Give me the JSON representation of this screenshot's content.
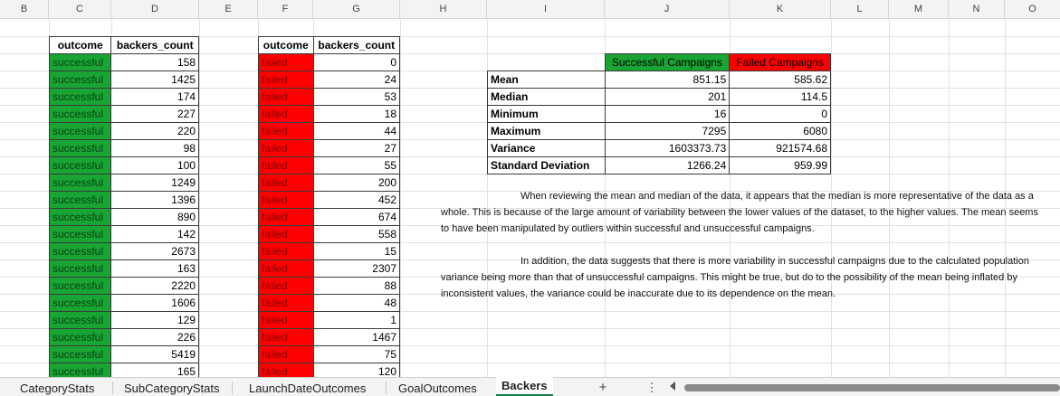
{
  "columns": [
    "B",
    "C",
    "D",
    "E",
    "F",
    "G",
    "H",
    "I",
    "J",
    "K",
    "L",
    "M",
    "N",
    "O"
  ],
  "success_table": {
    "headers": [
      "outcome",
      "backers_count"
    ],
    "outcome_label": "successful",
    "values": [
      "158",
      "1425",
      "174",
      "227",
      "220",
      "98",
      "100",
      "1249",
      "1396",
      "890",
      "142",
      "2673",
      "163",
      "2220",
      "1606",
      "129",
      "226",
      "5419",
      "165"
    ]
  },
  "failed_table": {
    "headers": [
      "outcome",
      "backers_count"
    ],
    "outcome_label": "failed",
    "values": [
      "0",
      "24",
      "53",
      "18",
      "44",
      "27",
      "55",
      "200",
      "452",
      "674",
      "558",
      "15",
      "2307",
      "88",
      "48",
      "1",
      "1467",
      "75",
      "120"
    ]
  },
  "stats": {
    "header_success": "Successful Campaigns",
    "header_failed": "Failed Campaigns",
    "rows": [
      {
        "label": "Mean",
        "success": "851.15",
        "failed": "585.62"
      },
      {
        "label": "Median",
        "success": "201",
        "failed": "114.5"
      },
      {
        "label": "Minimum",
        "success": "16",
        "failed": "0"
      },
      {
        "label": "Maximum",
        "success": "7295",
        "failed": "6080"
      },
      {
        "label": "Variance",
        "success": "1603373.73",
        "failed": "921574.68"
      },
      {
        "label": "Standard Deviation",
        "success": "1266.24",
        "failed": "959.99"
      }
    ]
  },
  "notes": [
    "When reviewing the mean and median of the data, it appears that the median is more representative of the data as a whole. This is because of the large amount of variability between the lower values of the dataset, to the higher values. The mean seems to have been manipulated by outliers within successful and unsuccessful campaigns.",
    "In addition, the data suggests that there is more variability in successful campaigns due to the calculated population variance being more than that of unsuccessful campaigns. This might be true, but do to the possibility of the mean being inflated by inconsistent values, the variance could be inaccurate due to its dependence on the mean."
  ],
  "sheet_tabs": [
    "CategoryStats",
    "SubCategoryStats",
    "LaunchDateOutcomes",
    "GoalOutcomes",
    "Backers"
  ],
  "active_tab": "Backers",
  "add_sheet_symbol": "+",
  "more_symbol": "⋮",
  "colors": {
    "success": "#18a534",
    "failed": "#ff0000",
    "active_tab_underline": "#107c41"
  }
}
